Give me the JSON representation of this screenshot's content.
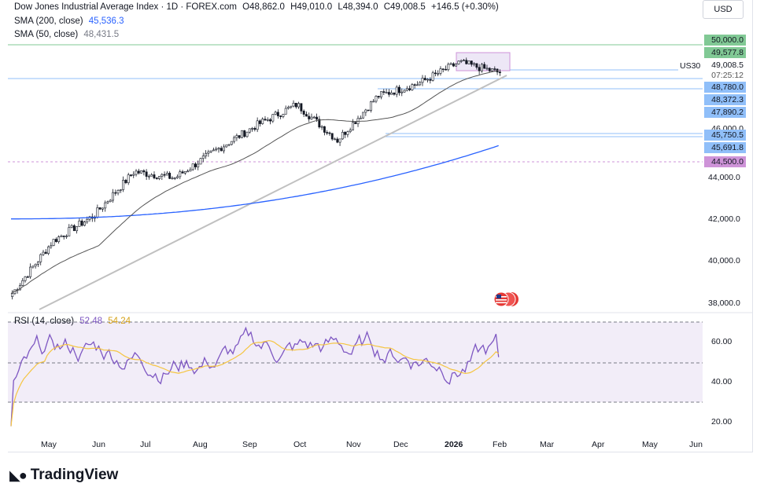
{
  "header": {
    "symbol_title": "Dow Jones Industrial Average Index · 1D · FOREX.com",
    "open": "O48,862.0",
    "high": "H49,010.0",
    "low": "L48,394.0",
    "close": "C49,008.5",
    "change": "+146.5 (+0.30%)",
    "sma200_label": "SMA (200, close)",
    "sma200_value": "45,536.3",
    "sma50_label": "SMA (50, close)",
    "sma50_value": "48,431.5",
    "currency": "USD",
    "rsi_label": "RSI (14, close)",
    "rsi_value": "52.48",
    "rsi_ma_value": "54.24"
  },
  "price_tags": {
    "t1": "50,000.0",
    "t2": "49,577.8",
    "symbol": "US30",
    "last": "49,008.5",
    "countdown": "07:25:12",
    "t3": "48,780.0",
    "t4": "48,372.3",
    "t5": "47,890.2",
    "t6": "46,000.0",
    "t7": "45,750.5",
    "t8": "45,691.8",
    "t9": "44,500.0"
  },
  "colors": {
    "up": "#131722",
    "sma200": "#2962ff",
    "sma50": "#555555",
    "rsi": "#7e57c2",
    "rsi_ma": "#f5c542",
    "green_tag": "#81c995",
    "blue_tag": "#90bff9",
    "purple_tag": "#ce93d8",
    "rsi_band": "#ede7f6"
  },
  "branding": {
    "name": "TradingView",
    "logo_icon": "tradingview-logo-icon"
  },
  "chart_data": [
    {
      "type": "candlestick",
      "title": "Dow Jones Industrial Average Index · 1D · FOREX.com",
      "x_tick_labels": [
        "May",
        "Jun",
        "Jul",
        "Aug",
        "Sep",
        "Oct",
        "Nov",
        "Dec",
        "2026",
        "Feb",
        "Mar",
        "Apr",
        "May",
        "Jun"
      ],
      "y_tick_labels": [
        "38,000.0",
        "40,000.0",
        "42,000.0",
        "44,000.0"
      ],
      "ylim": [
        37700,
        50600
      ],
      "approx_close_path": [
        {
          "x": "Apr",
          "y": 38500
        },
        {
          "x": "May",
          "y": 41000
        },
        {
          "x": "Jun",
          "y": 42200
        },
        {
          "x": "Jul",
          "y": 44300
        },
        {
          "x": "Aug",
          "y": 44000
        },
        {
          "x": "Sep",
          "y": 45300
        },
        {
          "x": "Oct",
          "y": 46500
        },
        {
          "x": "Nov",
          "y": 47500
        },
        {
          "x": "Nov",
          "y": 45800
        },
        {
          "x": "Dec",
          "y": 47900
        },
        {
          "x": "2026",
          "y": 48500
        },
        {
          "x": "2026",
          "y": 49500
        },
        {
          "x": "Feb",
          "y": 49008.5
        }
      ],
      "series": [
        {
          "name": "SMA (200, close)",
          "last": 45536.3
        },
        {
          "name": "SMA (50, close)",
          "last": 48431.5
        }
      ],
      "horizontal_levels": [
        50000.0,
        48780.0,
        45750.5,
        44500.0
      ],
      "grid": false
    },
    {
      "type": "line",
      "title": "RSI (14, close)",
      "y_tick_labels": [
        "20.00",
        "40.00",
        "60.00"
      ],
      "ylim": [
        17,
        77
      ],
      "bands": [
        30,
        50,
        70
      ],
      "series": [
        {
          "name": "RSI (14, close)",
          "last": 52.48
        },
        {
          "name": "RSI-based MA",
          "last": 54.24
        }
      ]
    }
  ]
}
